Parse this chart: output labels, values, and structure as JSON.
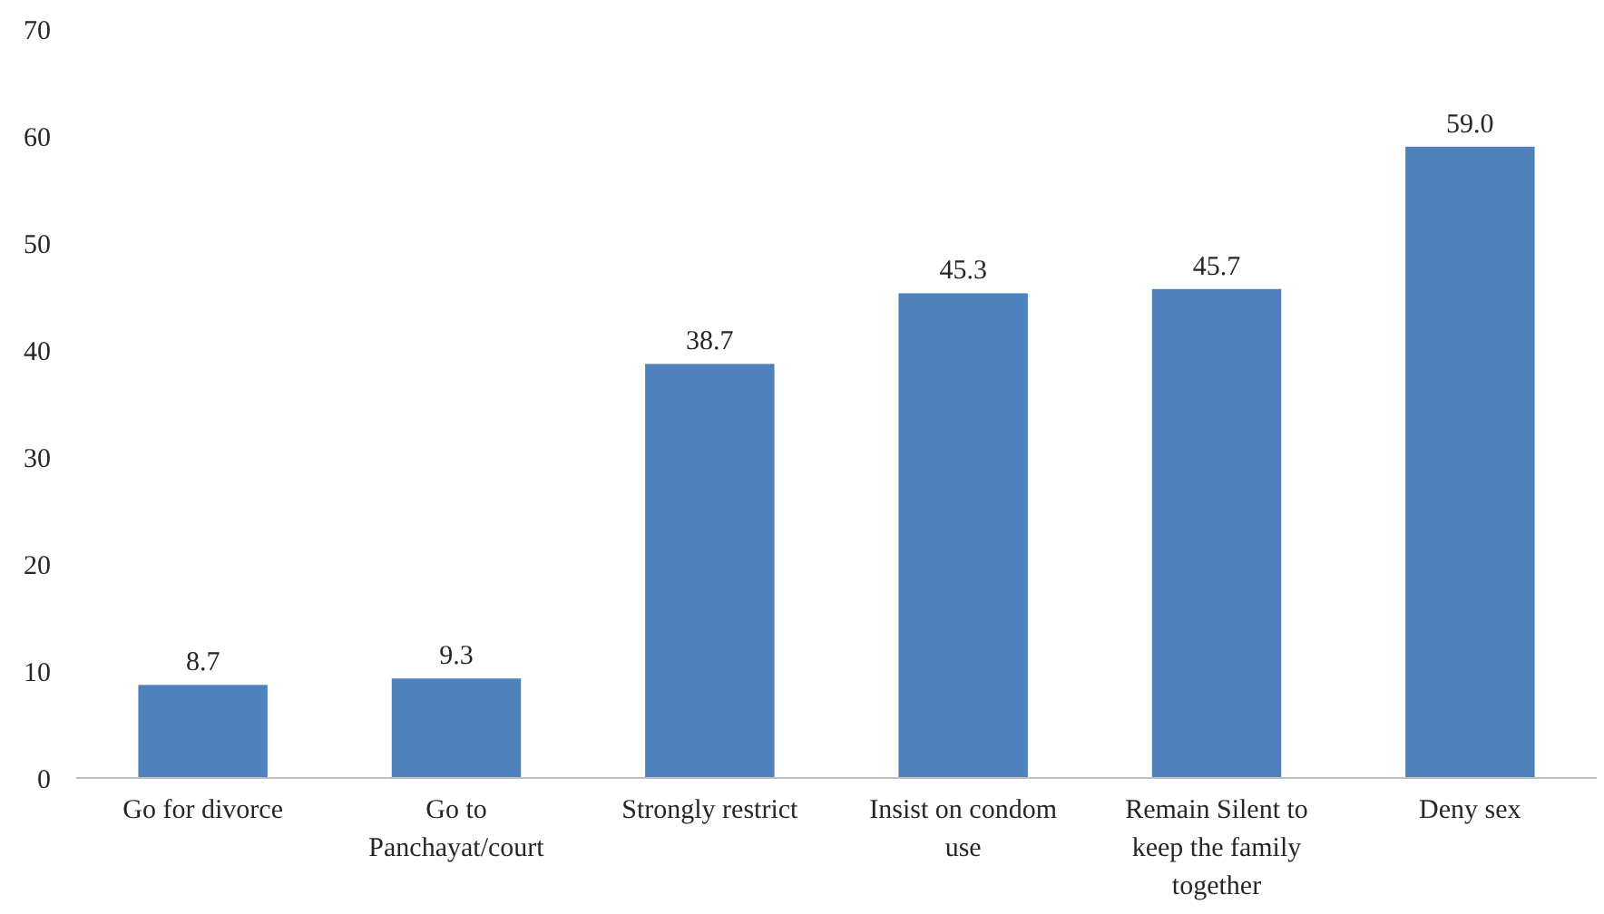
{
  "chart_data": {
    "type": "bar",
    "categories": [
      "Go for divorce",
      "Go to Panchayat/court",
      "Strongly restrict",
      "Insist on condom use",
      "Remain Silent to keep the family together",
      "Deny sex"
    ],
    "values": [
      8.7,
      9.3,
      38.7,
      45.3,
      45.7,
      59.0
    ],
    "value_labels": [
      "8.7",
      "9.3",
      "38.7",
      "45.3",
      "45.7",
      "59.0"
    ],
    "color": "#4f81bd",
    "ylim": [
      0,
      70
    ],
    "yticks": [
      0,
      10,
      20,
      30,
      40,
      50,
      60,
      70
    ],
    "grid": false
  }
}
